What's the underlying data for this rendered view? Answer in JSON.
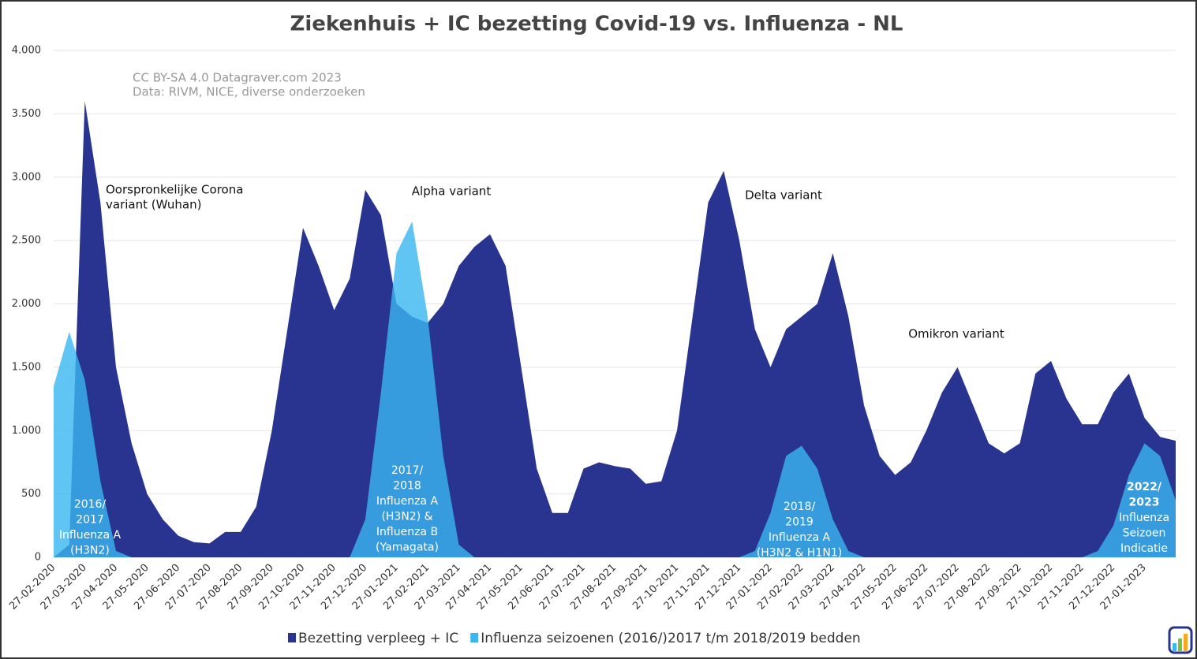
{
  "chart_data": {
    "type": "area",
    "title": "Ziekenhuis + IC  bezetting Covid-19 vs. Influenza - NL",
    "subtitle": [
      "CC BY-SA 4.0  Datagraver.com 2023",
      "Data: RIVM, NICE, diverse onderzoeken"
    ],
    "categories": [
      "27-02-2020",
      null,
      "27-03-2020",
      null,
      "27-04-2020",
      null,
      "27-05-2020",
      null,
      "27-06-2020",
      null,
      "27-07-2020",
      null,
      "27-08-2020",
      null,
      "27-09-2020",
      null,
      "27-10-2020",
      null,
      "27-11-2020",
      null,
      "27-12-2020",
      null,
      "27-01-2021",
      null,
      "27-02-2021",
      null,
      "27-03-2021",
      null,
      "27-04-2021",
      null,
      "27-05-2021",
      null,
      "27-06-2021",
      null,
      "27-07-2021",
      null,
      "27-08-2021",
      null,
      "27-09-2021",
      null,
      "27-10-2021",
      null,
      "27-11-2021",
      null,
      "27-12-2021",
      null,
      "27-01-2022",
      null,
      "27-02-2022",
      null,
      "27-03-2022",
      null,
      "27-04-2022",
      null,
      "27-05-2022",
      null,
      "27-06-2022",
      null,
      "27-07-2022",
      null,
      "27-08-2022",
      null,
      "27-09-2022",
      null,
      "27-10-2022",
      null,
      "27-11-2022",
      null,
      "27-12-2022",
      null,
      "27-01-2023",
      null,
      null
    ],
    "series": [
      {
        "name": "Bezetting verpleeg + IC",
        "color": "#28348f",
        "values": [
          0,
          100,
          3600,
          2800,
          1500,
          900,
          500,
          300,
          170,
          120,
          110,
          200,
          200,
          400,
          1000,
          1800,
          2600,
          2300,
          1950,
          2200,
          2900,
          2700,
          2000,
          1900,
          1850,
          2000,
          2300,
          2450,
          2550,
          2300,
          1500,
          700,
          350,
          350,
          700,
          750,
          720,
          700,
          580,
          600,
          1000,
          1900,
          2800,
          3050,
          2500,
          1800,
          1500,
          1800,
          1900,
          2000,
          2400,
          1900,
          1200,
          800,
          650,
          750,
          1000,
          1300,
          1500,
          1200,
          900,
          820,
          900,
          1450,
          1550,
          1250,
          1050,
          1050,
          1300,
          1450,
          1100,
          950,
          920
        ]
      },
      {
        "name": "Influenza seizoenen (2016/)2017 t/m 2018/2019 bedden",
        "color": "#3ab6f0",
        "values": [
          1350,
          1780,
          1400,
          600,
          50,
          0,
          null,
          null,
          null,
          null,
          null,
          null,
          null,
          null,
          null,
          null,
          null,
          null,
          null,
          0,
          300,
          1300,
          2400,
          2650,
          1900,
          800,
          100,
          0,
          null,
          null,
          null,
          null,
          null,
          null,
          null,
          null,
          null,
          null,
          null,
          null,
          null,
          null,
          null,
          null,
          0,
          50,
          350,
          800,
          880,
          700,
          300,
          50,
          0,
          null,
          null,
          null,
          null,
          null,
          null,
          null,
          null,
          null,
          null,
          null,
          null,
          null,
          0,
          50,
          250,
          650,
          900,
          800,
          450
        ]
      }
    ],
    "ylim": [
      0,
      4000
    ],
    "yticks": [
      0,
      500,
      {
        "value": 1000,
        "label": "1.000"
      },
      {
        "value": 1500,
        "label": "1.500"
      },
      {
        "value": 2000,
        "label": "2.000"
      },
      {
        "value": 2500,
        "label": "2.500"
      },
      {
        "value": 3000,
        "label": "3.000"
      },
      {
        "value": 3500,
        "label": "3.500"
      },
      {
        "value": 4000,
        "label": "4.000"
      }
    ],
    "grid": true,
    "annotations": [
      {
        "text": [
          "Oorspronkelijke Corona",
          "variant (Wuhan)"
        ]
      },
      {
        "text": [
          "Alpha variant"
        ]
      },
      {
        "text": [
          "Delta variant"
        ]
      },
      {
        "text": [
          "Omikron variant"
        ]
      },
      {
        "text": [
          "2016/",
          "2017",
          "Influenza A",
          "(H3N2)"
        ]
      },
      {
        "text": [
          "2017/",
          "2018",
          "Influenza A",
          "(H3N2) &",
          "Influenza B",
          "(Yamagata)"
        ]
      },
      {
        "text": [
          "2018/",
          "2019",
          "Influenza A",
          "(H3N2 & H1N1)"
        ]
      },
      {
        "text": [
          "2022/",
          "2023",
          "Influenza",
          "Seizoen",
          "Indicatie"
        ]
      }
    ]
  }
}
